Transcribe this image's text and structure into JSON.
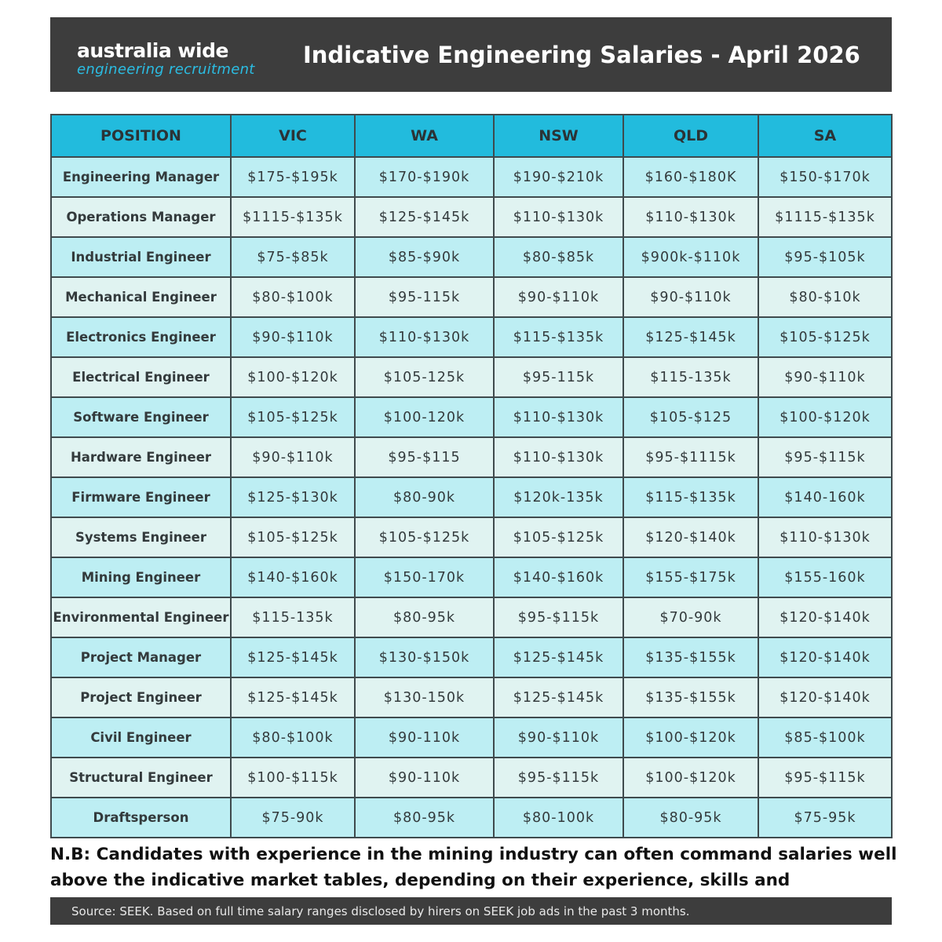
{
  "header": {
    "logo_line1": "australia wide",
    "logo_line2": "engineering recruitment",
    "title": "Indicative Engineering Salaries - April 2026"
  },
  "table": {
    "columns": [
      "POSITION",
      "VIC",
      "WA",
      "NSW",
      "QLD",
      "SA"
    ],
    "rows": [
      [
        "Engineering Manager",
        "$175-$195k",
        "$170-$190k",
        "$190-$210k",
        "$160-$180K",
        "$150-$170k"
      ],
      [
        "Operations Manager",
        "$1115-$135k",
        "$125-$145k",
        "$110-$130k",
        "$110-$130k",
        "$1115-$135k"
      ],
      [
        "Industrial Engineer",
        "$75-$85k",
        "$85-$90k",
        "$80-$85k",
        "$900k-$110k",
        "$95-$105k"
      ],
      [
        "Mechanical Engineer",
        "$80-$100k",
        "$95-115k",
        "$90-$110k",
        "$90-$110k",
        "$80-$10k"
      ],
      [
        "Electronics Engineer",
        "$90-$110k",
        "$110-$130k",
        "$115-$135k",
        "$125-$145k",
        "$105-$125k"
      ],
      [
        "Electrical Engineer",
        "$100-$120k",
        "$105-125k",
        "$95-115k",
        "$115-135k",
        "$90-$110k"
      ],
      [
        "Software Engineer",
        "$105-$125k",
        "$100-120k",
        "$110-$130k",
        "$105-$125",
        "$100-$120k"
      ],
      [
        "Hardware Engineer",
        "$90-$110k",
        "$95-$115",
        "$110-$130k",
        "$95-$1115k",
        "$95-$115k"
      ],
      [
        "Firmware Engineer",
        "$125-$130k",
        "$80-90k",
        "$120k-135k",
        "$115-$135k",
        "$140-160k"
      ],
      [
        "Systems Engineer",
        "$105-$125k",
        "$105-$125k",
        "$105-$125k",
        "$120-$140k",
        "$110-$130k"
      ],
      [
        "Mining Engineer",
        "$140-$160k",
        "$150-170k",
        "$140-$160k",
        "$155-$175k",
        "$155-160k"
      ],
      [
        "Environmental Engineer",
        "$115-135k",
        "$80-95k",
        "$95-$115k",
        "$70-90k",
        "$120-$140k"
      ],
      [
        "Project Manager",
        "$125-$145k",
        "$130-$150k",
        "$125-$145k",
        "$135-$155k",
        "$120-$140k"
      ],
      [
        "Project Engineer",
        "$125-$145k",
        "$130-150k",
        "$125-$145k",
        "$135-$155k",
        "$120-$140k"
      ],
      [
        "Civil Engineer",
        "$80-$100k",
        "$90-110k",
        "$90-$110k",
        "$100-$120k",
        "$85-$100k"
      ],
      [
        "Structural Engineer",
        "$100-$115k",
        "$90-110k",
        "$95-$115k",
        "$100-$120k",
        "$95-$115k"
      ],
      [
        "Draftsperson",
        "$75-90k",
        "$80-95k",
        "$80-100k",
        "$80-95k",
        "$75-95k"
      ]
    ]
  },
  "note": "N.B: Candidates with experience in the mining industry can often command salaries well above the indicative market tables, depending on their experience, skills and specialities.",
  "source": "Source: SEEK. Based on full time salary ranges disclosed by hirers on SEEK job ads in the past 3 months.",
  "colors": {
    "header_bg": "#3d3d3d",
    "brand_blue": "#2bbde3",
    "table_header": "#22bbdd",
    "row_alt_a": "#bdeef3",
    "row_alt_b": "#e0f3f1"
  }
}
